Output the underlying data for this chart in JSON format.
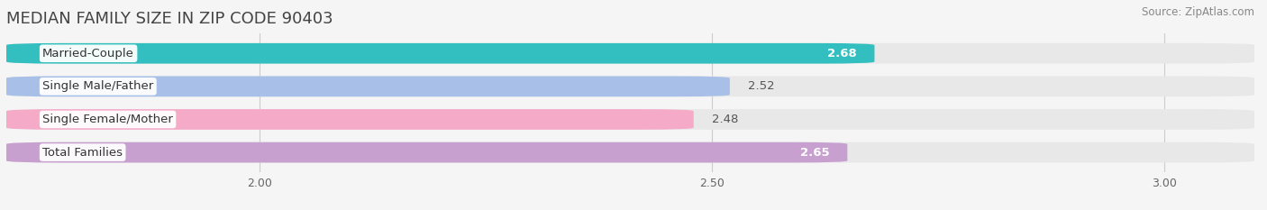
{
  "title": "MEDIAN FAMILY SIZE IN ZIP CODE 90403",
  "source": "Source: ZipAtlas.com",
  "categories": [
    "Married-Couple",
    "Single Male/Father",
    "Single Female/Mother",
    "Total Families"
  ],
  "values": [
    2.68,
    2.52,
    2.48,
    2.65
  ],
  "bar_colors": [
    "#33bfbf",
    "#a8c0e8",
    "#f5aac8",
    "#c8a0d0"
  ],
  "value_text_colors": [
    "#ffffff",
    "#555555",
    "#555555",
    "#ffffff"
  ],
  "xlim": [
    1.72,
    3.1
  ],
  "xstart": 1.72,
  "xticks": [
    2.0,
    2.5,
    3.0
  ],
  "xtick_labels": [
    "2.00",
    "2.50",
    "3.00"
  ],
  "bar_height": 0.62,
  "bar_gap": 0.15,
  "value_fontsize": 9.5,
  "label_fontsize": 9.5,
  "title_fontsize": 13,
  "source_fontsize": 8.5,
  "background_color": "#f5f5f5",
  "bar_bg_color": "#e8e8e8",
  "grid_color": "#cccccc",
  "label_pill_color": "#ffffff"
}
